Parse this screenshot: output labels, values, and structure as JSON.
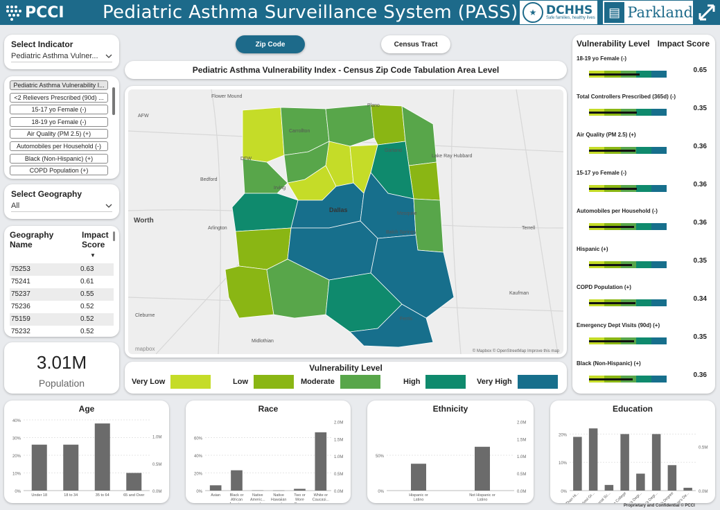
{
  "header": {
    "logo_text": "PCCI",
    "title": "Pediatric Asthma Surveillance System (PASS)",
    "dchhs_text": "DCHHS",
    "dchhs_tagline": "Safe families, healthy lives",
    "parkland_text": "Parkland"
  },
  "left": {
    "indicator_label": "Select Indicator",
    "indicator_value": "Pediatric Asthma Vulner...",
    "indicator_list": [
      "Pediatric Asthma Vulnerability I...",
      "<2 Relievers Prescribed (90d) ...",
      "15-17 yo Female (-)",
      "18-19 yo Female (-)",
      "Air Quality (PM 2.5) (+)",
      "Automobiles per Household (-)",
      "Black (Non-Hispanic) (+)",
      "COPD Population (+)"
    ],
    "geography_label": "Select Geography",
    "geography_value": "All",
    "table": {
      "col1": "Geography Name",
      "col2": "Impact Score",
      "rows": [
        [
          "75253",
          "0.63"
        ],
        [
          "75241",
          "0.61"
        ],
        [
          "75237",
          "0.55"
        ],
        [
          "75236",
          "0.52"
        ],
        [
          "75159",
          "0.52"
        ],
        [
          "75232",
          "0.52"
        ]
      ]
    },
    "population_value": "3.01M",
    "population_label": "Population"
  },
  "tabs": {
    "zip": "Zip Code",
    "tract": "Census Tract"
  },
  "map": {
    "title": "Pediatric Asthma Vulnerability Index - Census Zip Code Tabulation Area Level",
    "places": [
      {
        "name": "Flower Mound"
      },
      {
        "name": "Plano"
      },
      {
        "name": "Carrollton"
      },
      {
        "name": "Garland"
      },
      {
        "name": "Lake Ray Hubbard"
      },
      {
        "name": "AFW"
      },
      {
        "name": "DFW"
      },
      {
        "name": "Bedford"
      },
      {
        "name": "Irving"
      },
      {
        "name": "Dallas"
      },
      {
        "name": "Mesquite"
      },
      {
        "name": "Worth"
      },
      {
        "name": "Arlington"
      },
      {
        "name": "Balch Springs"
      },
      {
        "name": "Terrell"
      },
      {
        "name": "Cleburne"
      },
      {
        "name": "Midlothian"
      },
      {
        "name": "Ferris"
      },
      {
        "name": "Kaufman"
      }
    ],
    "attribution": "© Mapbox © OpenStreetMap  Improve this map",
    "mapbox_logo": "mapbox"
  },
  "legend": {
    "title": "Vulnerability Level",
    "items": [
      {
        "label": "Very Low",
        "color": "#c5dc28"
      },
      {
        "label": "Low",
        "color": "#8ab614"
      },
      {
        "label": "Moderate",
        "color": "#58a64a"
      },
      {
        "label": "High",
        "color": "#0f8a6d"
      },
      {
        "label": "Very High",
        "color": "#176f8c"
      }
    ]
  },
  "vulnerability": {
    "col1": "Vulnerability Level",
    "col2": "Impact Score",
    "rows": [
      {
        "name": "18-19 yo Female (-)",
        "score": "0.65",
        "fill": 0.65
      },
      {
        "name": "Total Controllers Prescribed (365d) (-)",
        "score": "0.35",
        "fill": 0.62
      },
      {
        "name": "Air Quality (PM 2.5) (+)",
        "score": "0.36",
        "fill": 0.6
      },
      {
        "name": "15-17 yo Female (-)",
        "score": "0.36",
        "fill": 0.62
      },
      {
        "name": "Automobiles per Household (-)",
        "score": "0.36",
        "fill": 0.58
      },
      {
        "name": "Hispanic (+)",
        "score": "0.35",
        "fill": 0.55
      },
      {
        "name": "COPD Population (+)",
        "score": "0.34",
        "fill": 0.6
      },
      {
        "name": "Emergency Dept Visits (90d) (+)",
        "score": "0.35",
        "fill": 0.58
      },
      {
        "name": "Black (Non-Hispanic) (+)",
        "score": "0.36",
        "fill": 0.56
      }
    ]
  },
  "chart_data": [
    {
      "type": "bar",
      "title": "Age",
      "categories": [
        "Under 18",
        "18 to 34",
        "35 to 64",
        "65 and Over"
      ],
      "values": [
        26,
        26,
        38,
        10
      ],
      "ylim": [
        0,
        40
      ],
      "y_ticks": [
        "0%",
        "10%",
        "20%",
        "30%",
        "40%"
      ],
      "y2_ticks": [
        "0.0M",
        "0.5M",
        "1.0M"
      ]
    },
    {
      "type": "bar",
      "title": "Race",
      "categories": [
        "Asian",
        "Black or African Americ...",
        "Native Americ... and Ala...",
        "Native Hawaiian and Ot...",
        "Two or More Races",
        "White or Caucasi..."
      ],
      "values": [
        6,
        23,
        0.3,
        0.2,
        2,
        66
      ],
      "ylim": [
        0,
        80
      ],
      "y_ticks": [
        "0%",
        "20%",
        "40%",
        "60%"
      ],
      "y2_ticks": [
        "0.0M",
        "0.5M",
        "1.0M",
        "1.5M",
        "2.0M"
      ]
    },
    {
      "type": "bar",
      "title": "Ethnicity",
      "categories": [
        "Hispanic or Latino",
        "Not Hispanic or Latino"
      ],
      "values": [
        38,
        62
      ],
      "ylim": [
        0,
        100
      ],
      "y_ticks": [
        "0%",
        "50%"
      ],
      "y2_ticks": [
        "0.0M",
        "0.5M",
        "1.0M",
        "1.5M",
        "2.0M"
      ]
    },
    {
      "type": "bar",
      "title": "Education",
      "categories": [
        "Less Than Hi...",
        "High School Gr...",
        "Professional Sc...",
        "Some College",
        "Associate's Degr...",
        "Bachelor's Degr...",
        "Master's Degree",
        "Doctorate's De..."
      ],
      "values": [
        19,
        22,
        2,
        20,
        6,
        20,
        9,
        1
      ],
      "ylim": [
        0,
        25
      ],
      "y_ticks": [
        "0%",
        "10%",
        "20%"
      ],
      "y2_ticks": [
        "0.0M",
        "0.5M"
      ]
    }
  ],
  "footer": "Proprietary and Confidential © PCCI"
}
